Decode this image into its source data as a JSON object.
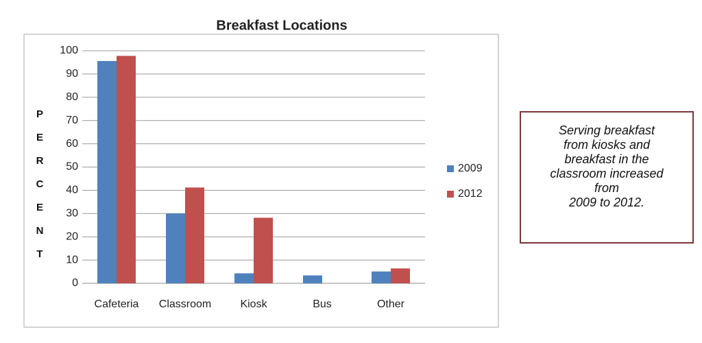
{
  "chart_data": {
    "type": "bar",
    "title": "Breakfast Locations",
    "y_label": "PERCENT",
    "categories": [
      "Cafeteria",
      "Classroom",
      "Kiosk",
      "Bus",
      "Other"
    ],
    "series": [
      {
        "name": "2009",
        "color": "#4f81bd",
        "values": [
          95.6,
          30,
          4.3,
          3.4,
          5.1
        ]
      },
      {
        "name": "2012",
        "color": "#c0504d",
        "values": [
          97.8,
          41.2,
          28.2,
          0,
          6.4
        ]
      }
    ],
    "ylim": [
      0,
      100
    ],
    "yticks": [
      0,
      10,
      20,
      30,
      40,
      50,
      60,
      70,
      80,
      90,
      100
    ],
    "grid": true,
    "legend": "right"
  },
  "annotation": {
    "text": "Serving breakfast\nfrom kiosks and\nbreakfast in the\nclassroom increased\nfrom\n2009 to 2012."
  }
}
